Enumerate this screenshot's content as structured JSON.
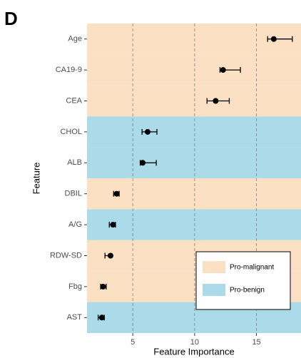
{
  "panel_label": "D",
  "chart_data": {
    "type": "dot",
    "x_label": "Feature Importance",
    "y_label": "Feature",
    "categories": [
      "Age",
      "CA19-9",
      "CEA",
      "CHOL",
      "ALB",
      "DBIL",
      "A/G",
      "RDW-SD",
      "Fbg",
      "AST"
    ],
    "category_groups": [
      "Pro-malignant",
      "Pro-malignant",
      "Pro-malignant",
      "Pro-benign",
      "Pro-benign",
      "Pro-malignant",
      "Pro-benign",
      "Pro-malignant",
      "Pro-malignant",
      "Pro-benign"
    ],
    "groups": [
      {
        "name": "Pro-malignant",
        "color": "#fbe0c3"
      },
      {
        "name": "Pro-benign",
        "color": "#abdbe8"
      }
    ],
    "series": [
      {
        "color": "#000000",
        "values": [
          16.4,
          12.3,
          11.7,
          6.2,
          5.8,
          3.7,
          3.4,
          3.2,
          2.6,
          2.5
        ],
        "lower": [
          15.9,
          12.05,
          11.0,
          5.75,
          5.6,
          3.45,
          3.1,
          2.75,
          2.4,
          2.2
        ],
        "upper": [
          17.9,
          13.7,
          12.8,
          6.95,
          6.9,
          3.9,
          3.6,
          3.2,
          2.85,
          2.7
        ]
      }
    ],
    "xlim": [
      1.3,
      18.6
    ],
    "xticks": [
      5,
      10,
      15
    ],
    "grid": true,
    "legend_corner": "bottom-right"
  }
}
